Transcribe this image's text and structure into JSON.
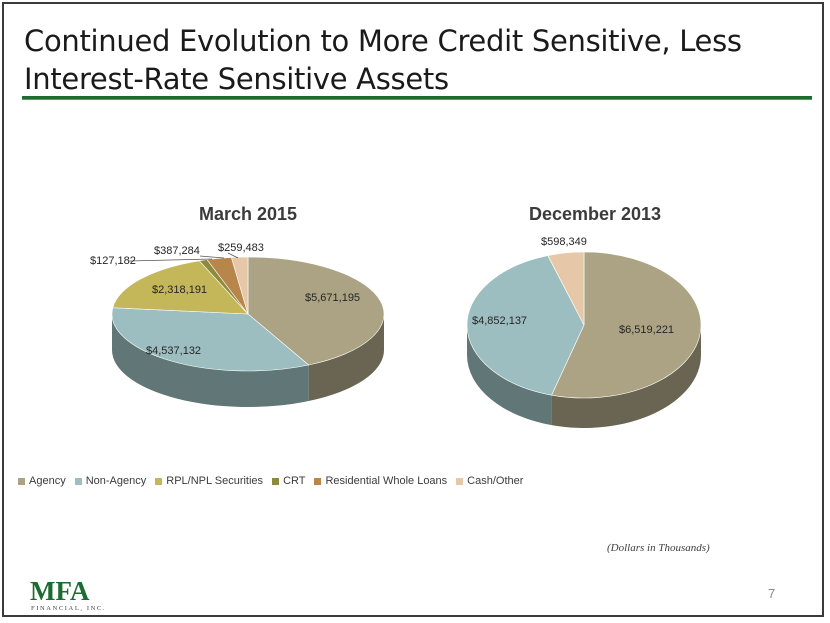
{
  "slide": {
    "title": "Continued Evolution to More Credit Sensitive, Less Interest-Rate Sensitive Assets",
    "note": "(Dollars in Thousands)",
    "page_number": "7",
    "logo_text": "MFA",
    "logo_subtext": "FINANCIAL, INC."
  },
  "colors": {
    "Agency": "#aba384",
    "Non-Agency": "#9cbec0",
    "RPL/NPL Securities": "#c4b75a",
    "CRT": "#8e8a3c",
    "Residential Whole Loans": "#b8864a",
    "Cash/Other": "#e6c8a8",
    "title_rule": "#1d6b30"
  },
  "chart_data": [
    {
      "type": "pie",
      "title": "March 2015",
      "categories": [
        "Agency",
        "Non-Agency",
        "RPL/NPL Securities",
        "CRT",
        "Residential Whole Loans",
        "Cash/Other"
      ],
      "values": [
        5671195,
        4537132,
        2318191,
        127182,
        387284,
        259483
      ],
      "data_labels": [
        "$5,671,195",
        "$4,537,132",
        "$2,318,191",
        "$127,182",
        "$387,284",
        "$259,483"
      ],
      "legend": "bottom",
      "three_d": true
    },
    {
      "type": "pie",
      "title": "December 2013",
      "categories": [
        "Agency",
        "Non-Agency",
        "Cash/Other"
      ],
      "values": [
        6519221,
        4852137,
        598349
      ],
      "data_labels": [
        "$6,519,221",
        "$4,852,137",
        "$598,349"
      ],
      "legend": "none",
      "three_d": true
    }
  ],
  "legend": {
    "items": [
      "Agency",
      "Non-Agency",
      "RPL/NPL Securities",
      "CRT",
      "Residential Whole Loans",
      "Cash/Other"
    ]
  }
}
